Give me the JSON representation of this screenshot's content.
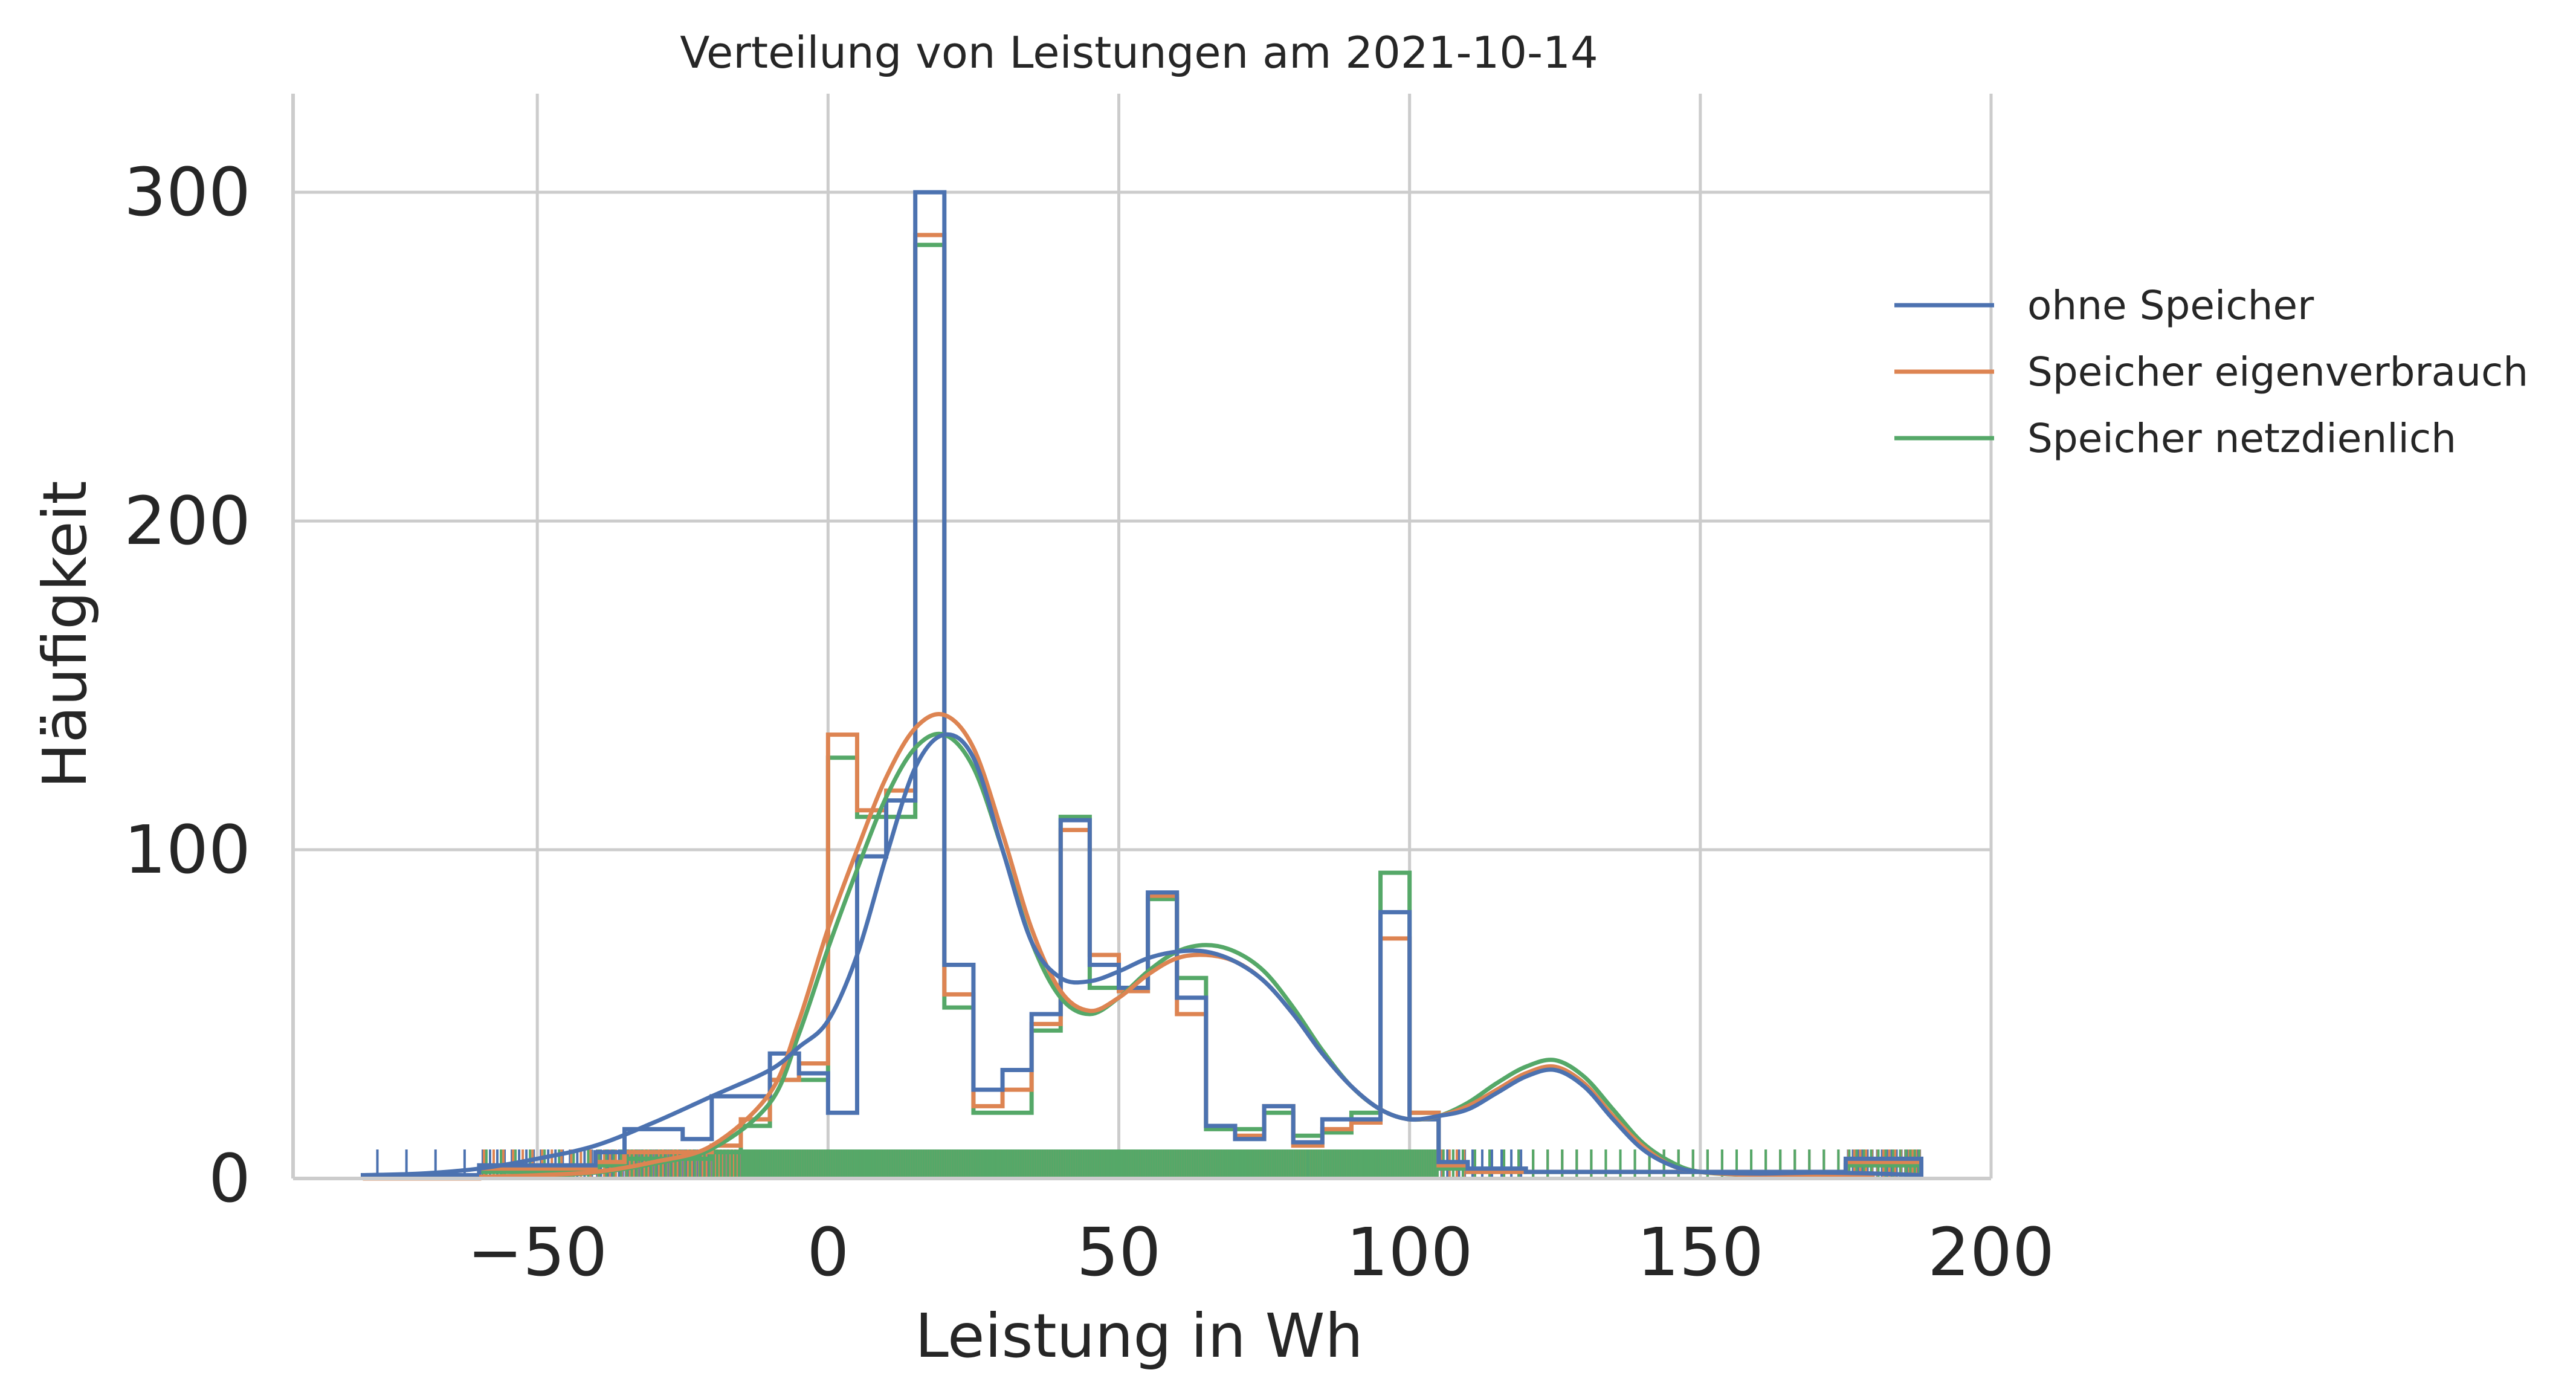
{
  "chart_data": {
    "type": "histogram",
    "title": "Verteilung von Leistungen am 2021-10-14",
    "xlabel": "Leistung in Wh",
    "ylabel": "Häufigkeit",
    "xlim": [
      -92,
      200
    ],
    "ylim": [
      0,
      330
    ],
    "xticks": [
      "−50",
      "0",
      "50",
      "100",
      "150",
      "200"
    ],
    "xtick_values": [
      -50,
      0,
      50,
      100,
      150,
      200
    ],
    "yticks": [
      "0",
      "100",
      "200",
      "300"
    ],
    "ytick_values": [
      0,
      100,
      200,
      300
    ],
    "grid": true,
    "legend_placement": "right, outside plot",
    "bin_width": 5,
    "bin_edges": [
      -80,
      -75,
      -70,
      -65,
      -60,
      -55,
      -50,
      -45,
      -40,
      -35,
      -30,
      -25,
      -20,
      -15,
      -10,
      -5,
      0,
      5,
      10,
      15,
      20,
      25,
      30,
      35,
      40,
      45,
      50,
      55,
      60,
      65,
      70,
      75,
      80,
      85,
      90,
      95,
      100,
      105,
      110,
      115,
      120,
      125,
      130,
      135,
      140,
      145,
      150,
      155,
      160,
      165,
      170,
      175,
      180,
      185,
      188
    ],
    "series": [
      {
        "name": "ohne Speicher",
        "color": "#4c72b0",
        "counts": [
          1,
          1,
          1,
          1,
          4,
          4,
          4,
          4,
          8,
          15,
          15,
          12,
          25,
          25,
          38,
          32,
          20,
          98,
          115,
          300,
          65,
          27,
          33,
          50,
          109,
          65,
          58,
          87,
          55,
          16,
          12,
          22,
          11,
          18,
          18,
          81,
          18,
          5,
          3,
          3,
          2,
          2,
          2,
          2,
          2,
          2,
          2,
          2,
          2,
          2,
          2,
          6,
          6,
          6
        ],
        "kde": [
          [
            -80,
            1
          ],
          [
            -70,
            1.5
          ],
          [
            -60,
            3
          ],
          [
            -50,
            6
          ],
          [
            -40,
            10
          ],
          [
            -30,
            17
          ],
          [
            -20,
            25
          ],
          [
            -10,
            33
          ],
          [
            -5,
            40
          ],
          [
            0,
            48
          ],
          [
            5,
            68
          ],
          [
            10,
            98
          ],
          [
            15,
            125
          ],
          [
            20,
            135
          ],
          [
            25,
            128
          ],
          [
            30,
            100
          ],
          [
            35,
            72
          ],
          [
            40,
            61
          ],
          [
            45,
            60
          ],
          [
            50,
            63
          ],
          [
            55,
            67
          ],
          [
            60,
            69
          ],
          [
            65,
            69
          ],
          [
            70,
            66
          ],
          [
            75,
            60
          ],
          [
            80,
            50
          ],
          [
            85,
            38
          ],
          [
            90,
            28
          ],
          [
            95,
            21
          ],
          [
            100,
            18
          ],
          [
            105,
            19
          ],
          [
            110,
            21
          ],
          [
            115,
            26
          ],
          [
            120,
            31
          ],
          [
            125,
            33
          ],
          [
            130,
            28
          ],
          [
            135,
            18
          ],
          [
            140,
            9
          ],
          [
            145,
            4
          ],
          [
            150,
            2
          ],
          [
            160,
            1.5
          ],
          [
            170,
            1.8
          ],
          [
            180,
            1.5
          ],
          [
            188,
            1
          ]
        ]
      },
      {
        "name": "Speicher eigenverbrauch",
        "color": "#dd8452",
        "counts": [
          0,
          0,
          0,
          0,
          3,
          3,
          3,
          3,
          5,
          8,
          8,
          8,
          10,
          18,
          30,
          35,
          135,
          112,
          118,
          287,
          56,
          22,
          27,
          47,
          106,
          68,
          57,
          86,
          50,
          16,
          13,
          22,
          10,
          15,
          17,
          73,
          20,
          4,
          2,
          2,
          2,
          2,
          2,
          2,
          2,
          2,
          2,
          2,
          2,
          2,
          2,
          5,
          5,
          5
        ],
        "kde": [
          [
            -60,
            0.5
          ],
          [
            -50,
            1
          ],
          [
            -40,
            2
          ],
          [
            -30,
            5
          ],
          [
            -20,
            10
          ],
          [
            -10,
            26
          ],
          [
            -5,
            48
          ],
          [
            0,
            76
          ],
          [
            5,
            100
          ],
          [
            10,
            122
          ],
          [
            15,
            137
          ],
          [
            20,
            141
          ],
          [
            25,
            131
          ],
          [
            30,
            105
          ],
          [
            35,
            76
          ],
          [
            40,
            57
          ],
          [
            45,
            51
          ],
          [
            50,
            55
          ],
          [
            55,
            62
          ],
          [
            60,
            67
          ],
          [
            65,
            68
          ],
          [
            70,
            66
          ],
          [
            75,
            60
          ],
          [
            80,
            50
          ],
          [
            85,
            38
          ],
          [
            90,
            28
          ],
          [
            95,
            21
          ],
          [
            100,
            18
          ],
          [
            105,
            19
          ],
          [
            110,
            22
          ],
          [
            115,
            27
          ],
          [
            120,
            32
          ],
          [
            125,
            34
          ],
          [
            130,
            29
          ],
          [
            135,
            19
          ],
          [
            140,
            10
          ],
          [
            145,
            4
          ],
          [
            150,
            2
          ],
          [
            160,
            1
          ],
          [
            170,
            1
          ],
          [
            180,
            0.8
          ]
        ]
      },
      {
        "name": "Speicher netzdienlich",
        "color": "#55a868",
        "counts": [
          0,
          0,
          0,
          0,
          2,
          2,
          2,
          2,
          4,
          6,
          6,
          6,
          8,
          16,
          30,
          30,
          128,
          110,
          110,
          284,
          52,
          20,
          20,
          45,
          110,
          58,
          57,
          85,
          61,
          15,
          15,
          20,
          13,
          14,
          20,
          93,
          20,
          3,
          2,
          2,
          2,
          2,
          2,
          2,
          2,
          2,
          2,
          2,
          2,
          2,
          2,
          4,
          4,
          4
        ],
        "kde": [
          [
            -60,
            0.4
          ],
          [
            -50,
            0.8
          ],
          [
            -40,
            1.8
          ],
          [
            -30,
            4.5
          ],
          [
            -20,
            9
          ],
          [
            -10,
            23
          ],
          [
            -5,
            44
          ],
          [
            0,
            70
          ],
          [
            5,
            94
          ],
          [
            10,
            116
          ],
          [
            15,
            131
          ],
          [
            20,
            135
          ],
          [
            25,
            125
          ],
          [
            30,
            100
          ],
          [
            35,
            72
          ],
          [
            40,
            55
          ],
          [
            45,
            50
          ],
          [
            50,
            55
          ],
          [
            55,
            63
          ],
          [
            60,
            69
          ],
          [
            65,
            71
          ],
          [
            70,
            69
          ],
          [
            75,
            63
          ],
          [
            80,
            52
          ],
          [
            85,
            39
          ],
          [
            90,
            28
          ],
          [
            95,
            21
          ],
          [
            100,
            18
          ],
          [
            105,
            19
          ],
          [
            110,
            23
          ],
          [
            115,
            29
          ],
          [
            120,
            34
          ],
          [
            125,
            36
          ],
          [
            130,
            31
          ],
          [
            135,
            21
          ],
          [
            140,
            11
          ],
          [
            145,
            5
          ],
          [
            150,
            2
          ],
          [
            160,
            1
          ],
          [
            170,
            1
          ],
          [
            180,
            0.8
          ]
        ]
      }
    ]
  }
}
